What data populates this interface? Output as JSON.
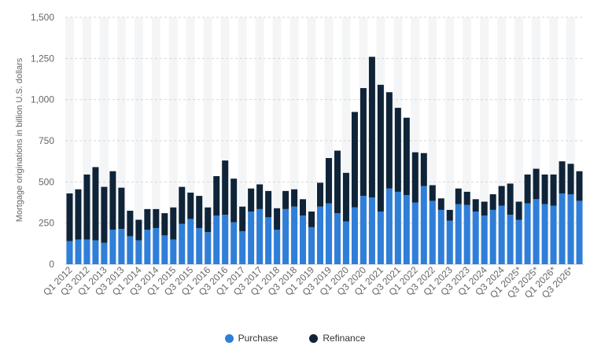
{
  "chart_data": {
    "type": "bar",
    "stacked": true,
    "ylabel": "Mortgage originations in billion U.S. dollars",
    "ylim": [
      0,
      1500
    ],
    "yticks": [
      0,
      250,
      500,
      750,
      1000,
      1250,
      1500
    ],
    "ytick_labels": [
      "0",
      "250",
      "500",
      "750",
      "1,000",
      "1,250",
      "1,500"
    ],
    "grid": true,
    "legend_position": "bottom",
    "categories": [
      "Q1 2012",
      "Q2 2012",
      "Q3 2012",
      "Q4 2012",
      "Q1 2013",
      "Q2 2013",
      "Q3 2013",
      "Q4 2013",
      "Q1 2014",
      "Q2 2014",
      "Q3 2014",
      "Q4 2014",
      "Q1 2015",
      "Q2 2015",
      "Q3 2015",
      "Q4 2015",
      "Q1 2016",
      "Q2 2016",
      "Q3 2016",
      "Q4 2016",
      "Q1 2017",
      "Q2 2017",
      "Q3 2017",
      "Q4 2017",
      "Q1 2018",
      "Q2 2018",
      "Q3 2018",
      "Q4 2018",
      "Q1 2019",
      "Q2 2019",
      "Q3 2019",
      "Q4 2019",
      "Q1 2020",
      "Q2 2020",
      "Q3 2020",
      "Q4 2020",
      "Q1 2021",
      "Q2 2021",
      "Q3 2021",
      "Q4 2021",
      "Q1 2022",
      "Q2 2022",
      "Q3 2022",
      "Q4 2022",
      "Q1 2023",
      "Q2 2023",
      "Q3 2023",
      "Q4 2023",
      "Q1 2024",
      "Q2 2024",
      "Q3 2024",
      "Q4 2024",
      "Q1 2025*",
      "Q2 2025*",
      "Q3 2025*",
      "Q4 2025*",
      "Q1 2026*",
      "Q2 2026*",
      "Q3 2026*",
      "Q4 2026*"
    ],
    "tick_labels": [
      "Q1 2012",
      "Q3 2012",
      "Q1 2013",
      "Q3 2013",
      "Q1 2014",
      "Q3 2014",
      "Q1 2015",
      "Q3 2015",
      "Q1 2016",
      "Q3 2016",
      "Q1 2017",
      "Q3 2017",
      "Q1 2018",
      "Q3 2018",
      "Q1 2019",
      "Q3 2019",
      "Q1 2020",
      "Q3 2020",
      "Q1 2021",
      "Q3 2021",
      "Q1 2022",
      "Q3 2022",
      "Q1 2023",
      "Q3 2023",
      "Q1 2024",
      "Q3 2024",
      "Q1 2025*",
      "Q3 2025*",
      "Q1 2026*",
      "Q3 2026*"
    ],
    "series": [
      {
        "name": "Purchase",
        "color": "#2f7ed8",
        "values": [
          140,
          150,
          150,
          145,
          130,
          210,
          215,
          170,
          145,
          210,
          220,
          175,
          150,
          245,
          275,
          220,
          195,
          295,
          300,
          255,
          200,
          320,
          335,
          285,
          210,
          335,
          350,
          295,
          225,
          350,
          370,
          310,
          260,
          345,
          415,
          405,
          320,
          460,
          440,
          420,
          375,
          475,
          385,
          330,
          265,
          365,
          360,
          320,
          295,
          330,
          355,
          300,
          270,
          370,
          395,
          365,
          355,
          430,
          425,
          385
        ]
      },
      {
        "name": "Refinance",
        "color": "#0f2438",
        "values": [
          290,
          305,
          395,
          445,
          340,
          355,
          250,
          155,
          125,
          125,
          115,
          135,
          195,
          225,
          160,
          195,
          150,
          240,
          330,
          265,
          150,
          140,
          150,
          160,
          130,
          110,
          105,
          100,
          95,
          145,
          275,
          380,
          295,
          580,
          655,
          855,
          770,
          585,
          510,
          470,
          305,
          200,
          95,
          70,
          65,
          95,
          80,
          75,
          85,
          95,
          120,
          190,
          110,
          175,
          185,
          180,
          190,
          195,
          185,
          180
        ]
      }
    ]
  }
}
